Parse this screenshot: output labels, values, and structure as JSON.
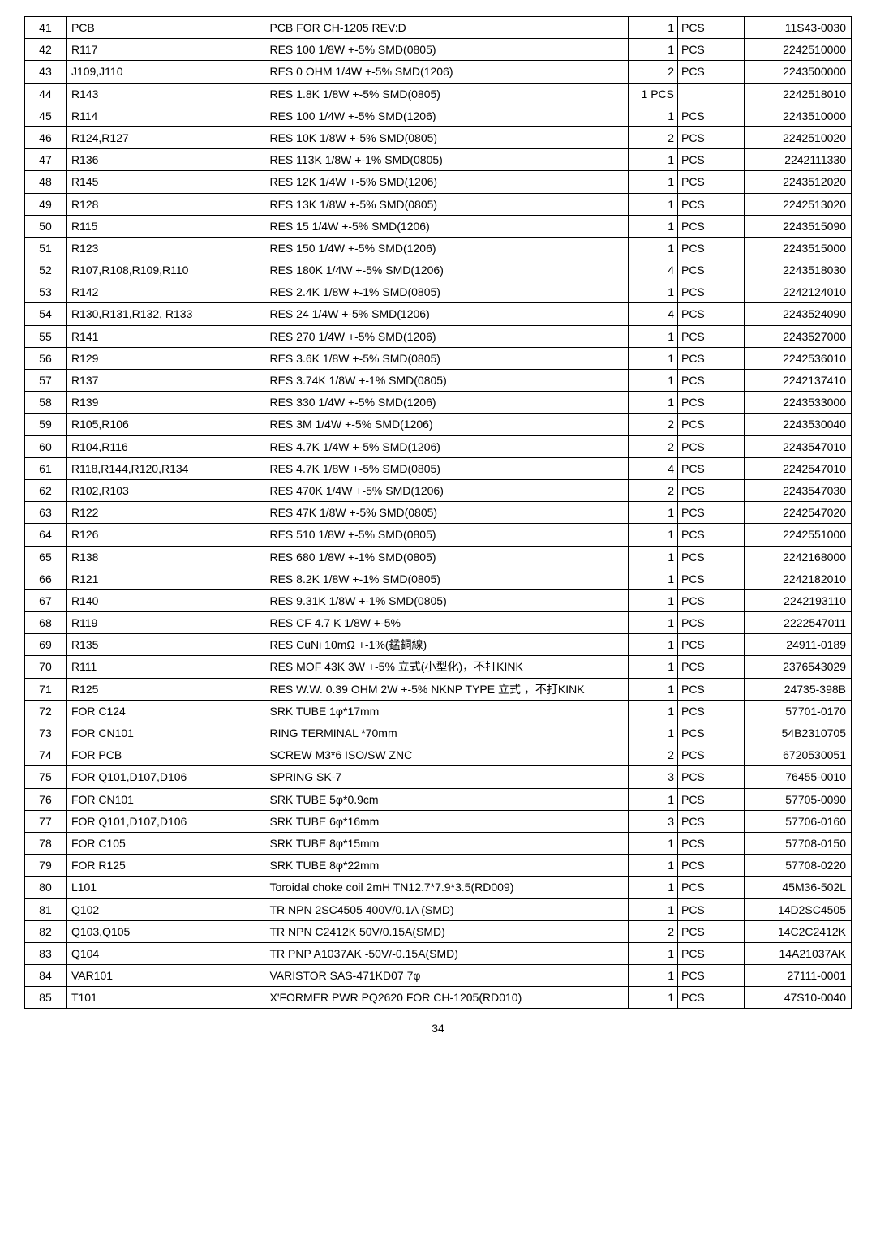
{
  "page_number": "34",
  "table": {
    "rows": [
      {
        "seq": "41",
        "ref": "PCB",
        "desc": "PCB FOR CH-1205 REV:D",
        "qty": "1",
        "unit": "PCS",
        "part": "11S43-0030"
      },
      {
        "seq": "42",
        "ref": "R117",
        "desc": "RES 100 1/8W +-5% SMD(0805)",
        "qty": "1",
        "unit": "PCS",
        "part": "2242510000"
      },
      {
        "seq": "43",
        "ref": "J109,J110",
        "desc": "RES 0 OHM 1/4W +-5% SMD(1206)",
        "qty": "2",
        "unit": "PCS",
        "part": "2243500000"
      },
      {
        "seq": "44",
        "ref": "R143",
        "desc": "RES 1.8K 1/8W +-5% SMD(0805)",
        "qty": "1 PCS",
        "unit": "",
        "part": "2242518010"
      },
      {
        "seq": "45",
        "ref": "R114",
        "desc": "RES 100 1/4W +-5% SMD(1206)",
        "qty": "1",
        "unit": "PCS",
        "part": "2243510000"
      },
      {
        "seq": "46",
        "ref": "R124,R127",
        "desc": "RES 10K 1/8W +-5% SMD(0805)",
        "qty": "2",
        "unit": "PCS",
        "part": "2242510020"
      },
      {
        "seq": "47",
        "ref": "R136",
        "desc": "RES 113K 1/8W +-1% SMD(0805)",
        "qty": "1",
        "unit": "PCS",
        "part": "2242111330"
      },
      {
        "seq": "48",
        "ref": "R145",
        "desc": "RES 12K 1/4W +-5% SMD(1206)",
        "qty": "1",
        "unit": "PCS",
        "part": "2243512020"
      },
      {
        "seq": "49",
        "ref": "R128",
        "desc": "RES 13K 1/8W +-5% SMD(0805)",
        "qty": "1",
        "unit": "PCS",
        "part": "2242513020"
      },
      {
        "seq": "50",
        "ref": "R115",
        "desc": "RES 15 1/4W +-5% SMD(1206)",
        "qty": "1",
        "unit": "PCS",
        "part": "2243515090"
      },
      {
        "seq": "51",
        "ref": "R123",
        "desc": "RES 150 1/4W +-5% SMD(1206)",
        "qty": "1",
        "unit": "PCS",
        "part": "2243515000"
      },
      {
        "seq": "52",
        "ref": "R107,R108,R109,R110",
        "desc": "RES 180K 1/4W +-5% SMD(1206)",
        "qty": "4",
        "unit": "PCS",
        "part": "2243518030"
      },
      {
        "seq": "53",
        "ref": "R142",
        "desc": "RES 2.4K 1/8W +-1% SMD(0805)",
        "qty": "1",
        "unit": "PCS",
        "part": "2242124010"
      },
      {
        "seq": "54",
        "ref": "R130,R131,R132,  R133",
        "desc": "RES 24 1/4W +-5% SMD(1206)",
        "qty": "4",
        "unit": "PCS",
        "part": "2243524090"
      },
      {
        "seq": "55",
        "ref": "R141",
        "desc": "RES 270 1/4W +-5% SMD(1206)",
        "qty": "1",
        "unit": "PCS",
        "part": "2243527000"
      },
      {
        "seq": "56",
        "ref": "R129",
        "desc": "RES 3.6K 1/8W +-5% SMD(0805)",
        "qty": "1",
        "unit": "PCS",
        "part": "2242536010"
      },
      {
        "seq": "57",
        "ref": "R137",
        "desc": "RES 3.74K 1/8W +-1% SMD(0805)",
        "qty": "1",
        "unit": "PCS",
        "part": "2242137410"
      },
      {
        "seq": "58",
        "ref": "R139",
        "desc": "RES 330 1/4W +-5% SMD(1206)",
        "qty": "1",
        "unit": "PCS",
        "part": "2243533000"
      },
      {
        "seq": "59",
        "ref": "R105,R106",
        "desc": "RES 3M 1/4W +-5% SMD(1206)",
        "qty": "2",
        "unit": "PCS",
        "part": "2243530040"
      },
      {
        "seq": "60",
        "ref": "R104,R116",
        "desc": "RES 4.7K 1/4W +-5% SMD(1206)",
        "qty": "2",
        "unit": "PCS",
        "part": "2243547010"
      },
      {
        "seq": "61",
        "ref": "R118,R144,R120,R134",
        "desc": "RES 4.7K 1/8W +-5% SMD(0805)",
        "qty": "4",
        "unit": "PCS",
        "part": "2242547010"
      },
      {
        "seq": "62",
        "ref": "R102,R103",
        "desc": "RES 470K 1/4W +-5% SMD(1206)",
        "qty": "2",
        "unit": "PCS",
        "part": "2243547030"
      },
      {
        "seq": "63",
        "ref": "R122",
        "desc": "RES 47K 1/8W +-5% SMD(0805)",
        "qty": "1",
        "unit": "PCS",
        "part": "2242547020"
      },
      {
        "seq": "64",
        "ref": "R126",
        "desc": "RES 510 1/8W +-5% SMD(0805)",
        "qty": "1",
        "unit": "PCS",
        "part": "2242551000"
      },
      {
        "seq": "65",
        "ref": "R138",
        "desc": "RES 680 1/8W +-1% SMD(0805)",
        "qty": "1",
        "unit": "PCS",
        "part": "2242168000"
      },
      {
        "seq": "66",
        "ref": "R121",
        "desc": "RES 8.2K 1/8W +-1% SMD(0805)",
        "qty": "1",
        "unit": "PCS",
        "part": "2242182010"
      },
      {
        "seq": "67",
        "ref": "R140",
        "desc": "RES 9.31K 1/8W +-1% SMD(0805)",
        "qty": "1",
        "unit": "PCS",
        "part": "2242193110"
      },
      {
        "seq": "68",
        "ref": "R119",
        "desc": "RES CF 4.7 K 1/8W +-5%",
        "qty": "1",
        "unit": "PCS",
        "part": "2222547011"
      },
      {
        "seq": "69",
        "ref": "R135",
        "desc": "RES CuNi 10mΩ +-1%(錳銅線)",
        "qty": "1",
        "unit": "PCS",
        "part": "24911-0189"
      },
      {
        "seq": "70",
        "ref": "R111",
        "desc": "RES MOF 43K 3W +-5% 立式(小型化)，不打KINK",
        "qty": "1",
        "unit": "PCS",
        "part": "2376543029"
      },
      {
        "seq": "71",
        "ref": "R125",
        "desc": "RES W.W.  0.39 OHM 2W +-5% NKNP TYPE 立式 ，不打KINK",
        "qty": "1",
        "unit": "PCS",
        "part": "24735-398B"
      },
      {
        "seq": "72",
        "ref": "FOR C124",
        "desc": "SRK TUBE 1φ*17mm",
        "qty": "1",
        "unit": "PCS",
        "part": "57701-0170"
      },
      {
        "seq": "73",
        "ref": "FOR CN101",
        "desc": "RING TERMINAL *70mm",
        "qty": "1",
        "unit": "PCS",
        "part": "54B2310705"
      },
      {
        "seq": "74",
        "ref": "FOR PCB",
        "desc": "SCREW M3*6 ISO/SW ZNC",
        "qty": "2",
        "unit": "PCS",
        "part": "6720530051"
      },
      {
        "seq": "75",
        "ref": "FOR Q101,D107,D106",
        "desc": "SPRING SK-7",
        "qty": "3",
        "unit": "PCS",
        "part": "76455-0010"
      },
      {
        "seq": "76",
        "ref": "FOR CN101",
        "desc": "SRK TUBE 5φ*0.9cm",
        "qty": "1",
        "unit": "PCS",
        "part": "57705-0090"
      },
      {
        "seq": "77",
        "ref": "FOR Q101,D107,D106",
        "desc": "SRK TUBE 6φ*16mm",
        "qty": "3",
        "unit": "PCS",
        "part": "57706-0160"
      },
      {
        "seq": "78",
        "ref": "FOR C105",
        "desc": "SRK TUBE 8φ*15mm",
        "qty": "1",
        "unit": "PCS",
        "part": "57708-0150"
      },
      {
        "seq": "79",
        "ref": "FOR R125",
        "desc": "SRK TUBE 8φ*22mm",
        "qty": "1",
        "unit": "PCS",
        "part": "57708-0220"
      },
      {
        "seq": "80",
        "ref": "L101",
        "desc": "Toroidal choke coil 2mH TN12.7*7.9*3.5(RD009)",
        "qty": "1",
        "unit": "PCS",
        "part": "45M36-502L"
      },
      {
        "seq": "81",
        "ref": "Q102",
        "desc": "TR NPN 2SC4505 400V/0.1A (SMD)",
        "qty": "1",
        "unit": "PCS",
        "part": "14D2SC4505"
      },
      {
        "seq": "82",
        "ref": "Q103,Q105",
        "desc": "TR NPN C2412K 50V/0.15A(SMD)",
        "qty": "2",
        "unit": "PCS",
        "part": "14C2C2412K"
      },
      {
        "seq": "83",
        "ref": "Q104",
        "desc": "TR PNP A1037AK -50V/-0.15A(SMD)",
        "qty": "1",
        "unit": "PCS",
        "part": "14A21037AK"
      },
      {
        "seq": "84",
        "ref": "VAR101",
        "desc": "VARISTOR SAS-471KD07  7φ",
        "qty": "1",
        "unit": "PCS",
        "part": "27111-0001"
      },
      {
        "seq": "85",
        "ref": "T101",
        "desc": "X'FORMER PWR PQ2620 FOR CH-1205(RD010)",
        "qty": "1",
        "unit": "PCS",
        "part": "47S10-0040"
      }
    ]
  }
}
